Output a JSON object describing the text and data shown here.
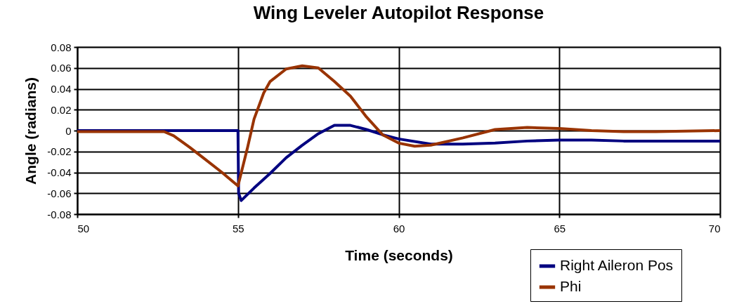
{
  "chart_data": {
    "type": "line",
    "title": "Wing Leveler Autopilot Response",
    "xlabel": "Time (seconds)",
    "ylabel": "Angle (radians)",
    "xlim": [
      50,
      70
    ],
    "xticks": [
      50,
      55,
      60,
      65,
      70
    ],
    "ylim": [
      -0.08,
      0.08
    ],
    "yticks": [
      -0.08,
      -0.06,
      -0.04,
      -0.02,
      0,
      0.02,
      0.04,
      0.06,
      0.08
    ],
    "grid": true,
    "legend": "bottom right",
    "marker": "none",
    "line_style": "solid",
    "series": [
      {
        "name": "Right Aileron Pos",
        "color": "#000080",
        "x": [
          50,
          55,
          55.02,
          55.1,
          55.5,
          56,
          56.5,
          57,
          57.5,
          58,
          58.5,
          59,
          59.5,
          60,
          61,
          62,
          63,
          64,
          65,
          66,
          67,
          68,
          70
        ],
        "values": [
          0,
          0,
          -0.06,
          -0.067,
          -0.055,
          -0.041,
          -0.026,
          -0.014,
          -0.003,
          0.005,
          0.005,
          0.001,
          -0.004,
          -0.008,
          -0.013,
          -0.013,
          -0.012,
          -0.01,
          -0.009,
          -0.009,
          -0.01,
          -0.01,
          -0.01
        ]
      },
      {
        "name": "Phi",
        "color": "#993300",
        "x": [
          50,
          52.7,
          53,
          53.5,
          54,
          54.5,
          55,
          55.3,
          55.5,
          55.8,
          56,
          56.5,
          57,
          57.5,
          58,
          58.5,
          59,
          59.5,
          60,
          60.5,
          61,
          62,
          63,
          64,
          65,
          66,
          67,
          68,
          70
        ],
        "values": [
          -0.001,
          -0.001,
          -0.005,
          -0.016,
          -0.028,
          -0.04,
          -0.053,
          -0.016,
          0.011,
          0.036,
          0.047,
          0.059,
          0.062,
          0.06,
          0.047,
          0.033,
          0.013,
          -0.004,
          -0.012,
          -0.015,
          -0.014,
          -0.007,
          0.001,
          0.003,
          0.002,
          0,
          -0.001,
          -0.001,
          0
        ]
      }
    ]
  }
}
